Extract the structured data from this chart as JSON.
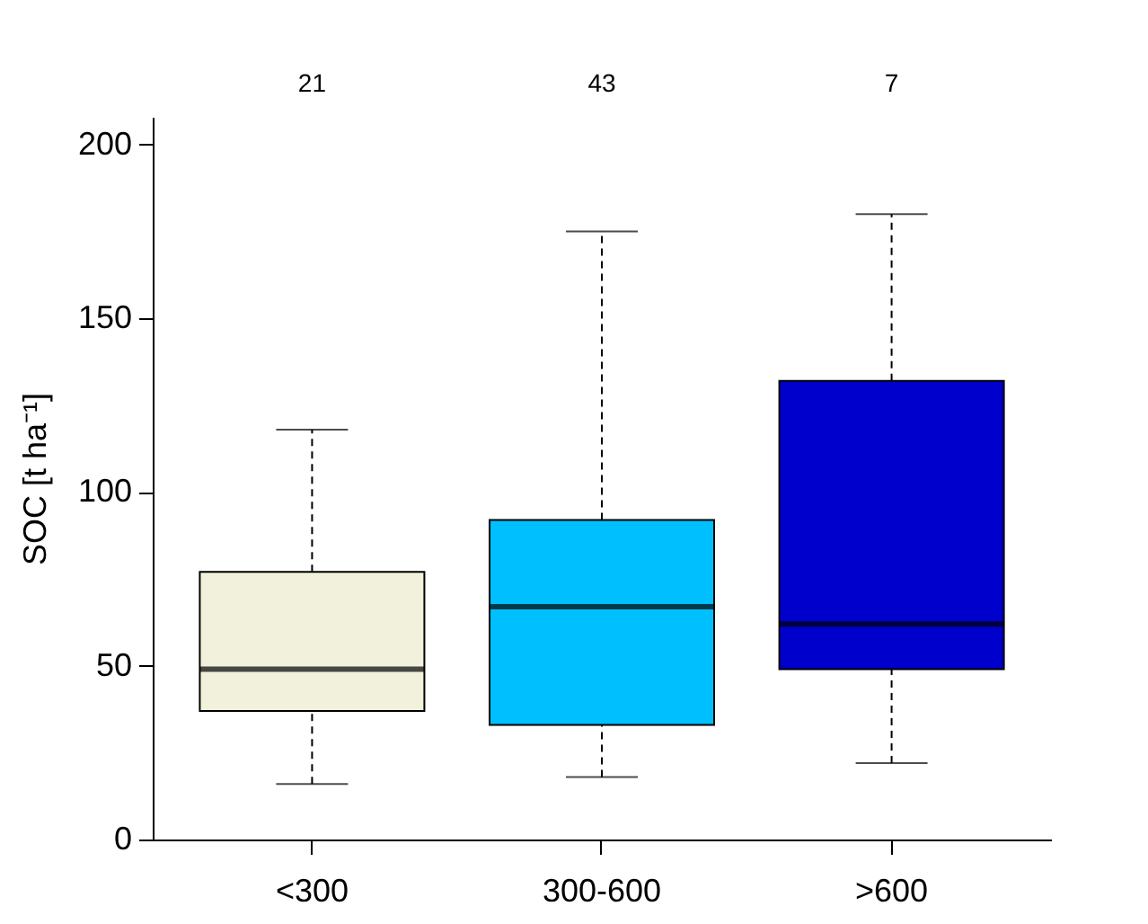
{
  "chart_data": {
    "type": "box",
    "ylabel": "SOC [t ha⁻¹]",
    "categories": [
      "<300",
      "300-600",
      ">600"
    ],
    "colors": [
      "#f2f2dc",
      "#00bfff",
      "#0000cd"
    ],
    "boxes": [
      {
        "low": 16,
        "q1": 37,
        "median": 49,
        "q3": 77,
        "high": 118
      },
      {
        "low": 18,
        "q1": 33,
        "median": 67,
        "q3": 92,
        "high": 175
      },
      {
        "low": 22,
        "q1": 49,
        "median": 62,
        "q3": 132,
        "high": 180
      }
    ],
    "ylim": [
      0,
      208
    ],
    "yticks": [
      0,
      50,
      100,
      150,
      200
    ],
    "grid": false,
    "annotations": [
      "21",
      "43",
      "7"
    ]
  }
}
